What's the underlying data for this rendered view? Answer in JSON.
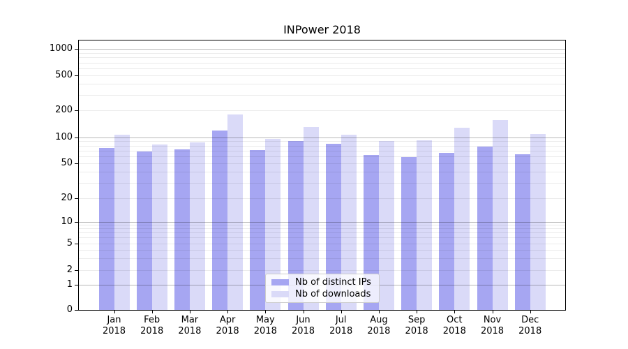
{
  "title": "INPower 2018",
  "legend": {
    "entries": [
      {
        "label": "Nb of distinct IPs",
        "color": "#a6a6f2"
      },
      {
        "label": "Nb of downloads",
        "color": "#dadaf8"
      }
    ]
  },
  "y_axis": {
    "tick_values": [
      0,
      1,
      2,
      5,
      10,
      20,
      50,
      100,
      200,
      500,
      1000
    ],
    "tick_labels": [
      "0",
      "1",
      "2",
      "5",
      "10",
      "20",
      "50",
      "100",
      "200",
      "500",
      "1000"
    ]
  },
  "x_axis": {
    "tick_labels_line1": [
      "Jan",
      "Feb",
      "Mar",
      "Apr",
      "May",
      "Jun",
      "Jul",
      "Aug",
      "Sep",
      "Oct",
      "Nov",
      "Dec"
    ],
    "tick_labels_line2": [
      "2018",
      "2018",
      "2018",
      "2018",
      "2018",
      "2018",
      "2018",
      "2018",
      "2018",
      "2018",
      "2018",
      "2018"
    ]
  },
  "chart_data": {
    "type": "bar",
    "title": "INPower 2018",
    "xlabel": "",
    "ylabel": "",
    "yscale": "log-like (symlog, 0 at baseline)",
    "ylim": [
      0,
      1400
    ],
    "grid": "horizontal, major decades darker, log minors lighter, drawn above bars",
    "legend_position": "lower center",
    "categories": [
      "Jan 2018",
      "Feb 2018",
      "Mar 2018",
      "Apr 2018",
      "May 2018",
      "Jun 2018",
      "Jul 2018",
      "Aug 2018",
      "Sep 2018",
      "Oct 2018",
      "Nov 2018",
      "Dec 2018"
    ],
    "series": [
      {
        "name": "Nb of distinct IPs",
        "color": "#a6a6f2",
        "values": [
          75,
          68,
          72,
          119,
          71,
          90,
          84,
          62,
          59,
          66,
          78,
          64
        ]
      },
      {
        "name": "Nb of downloads",
        "color": "#dadaf8",
        "values": [
          107,
          82,
          87,
          181,
          95,
          130,
          107,
          91,
          92,
          127,
          156,
          109
        ]
      }
    ]
  }
}
